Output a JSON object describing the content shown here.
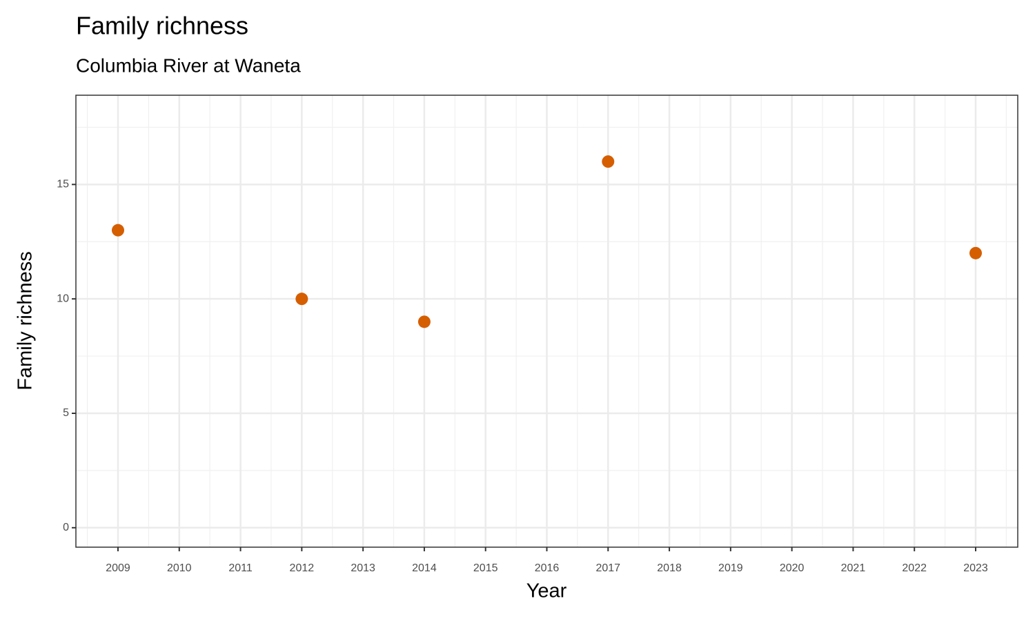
{
  "chart_data": {
    "type": "scatter",
    "title": "Family richness",
    "subtitle": "Columbia River at Waneta",
    "x_label": "Year",
    "y_label": "Family richness",
    "x": [
      2009,
      2012,
      2014,
      2017,
      2023
    ],
    "values": [
      13,
      10,
      9,
      16,
      12
    ],
    "color": "#d55e00",
    "xlim": [
      2008.313,
      2023.687
    ],
    "xticks": [
      2009,
      2010,
      2011,
      2012,
      2013,
      2014,
      2015,
      2016,
      2017,
      2018,
      2019,
      2020,
      2021,
      2022,
      2023
    ],
    "ylim": [
      -0.85,
      18.9
    ],
    "yticks": [
      0,
      5,
      10,
      15
    ],
    "grid": true
  }
}
